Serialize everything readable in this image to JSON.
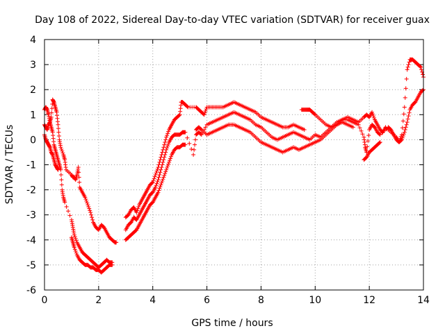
{
  "chart_data": {
    "type": "scatter",
    "title": "Day 108 of 2022, Sidereal Day-to-day VTEC variation (SDTVAR) for receiver guax",
    "xlabel": "GPS time / hours",
    "ylabel": "SDTVAR / TECUs",
    "xlim": [
      0,
      14
    ],
    "ylim": [
      -6,
      4
    ],
    "x_ticks": [
      0,
      2,
      4,
      6,
      8,
      10,
      12,
      14
    ],
    "y_ticks": [
      -6,
      -5,
      -4,
      -3,
      -2,
      -1,
      0,
      1,
      2,
      3,
      4
    ],
    "grid": true,
    "marker": "+",
    "color": "#ff0000",
    "series": [
      {
        "name": "track-a",
        "points": [
          [
            0.0,
            1.2
          ],
          [
            0.05,
            1.3
          ],
          [
            0.1,
            1.2
          ],
          [
            0.15,
            1.0
          ],
          [
            0.2,
            0.7
          ],
          [
            0.25,
            0.9
          ],
          [
            0.3,
            1.6
          ],
          [
            0.35,
            1.5
          ],
          [
            0.4,
            1.3
          ],
          [
            0.45,
            1.1
          ],
          [
            0.5,
            0.6
          ],
          [
            0.55,
            0.0
          ],
          [
            0.6,
            -0.3
          ],
          [
            0.7,
            -0.6
          ],
          [
            0.75,
            -0.8
          ],
          [
            0.8,
            -1.2
          ],
          [
            1.0,
            -1.4
          ],
          [
            1.05,
            -1.5
          ],
          [
            1.1,
            -1.5
          ],
          [
            1.15,
            -1.6
          ],
          [
            1.2,
            -1.4
          ],
          [
            1.25,
            -1.1
          ],
          [
            1.3,
            -1.9
          ],
          [
            1.4,
            -2.1
          ],
          [
            1.5,
            -2.3
          ],
          [
            1.6,
            -2.6
          ],
          [
            1.7,
            -2.9
          ],
          [
            1.8,
            -3.3
          ],
          [
            1.9,
            -3.5
          ],
          [
            2.0,
            -3.6
          ],
          [
            2.1,
            -3.4
          ],
          [
            2.2,
            -3.5
          ],
          [
            2.3,
            -3.7
          ],
          [
            2.4,
            -3.9
          ],
          [
            2.5,
            -4.0
          ],
          [
            2.6,
            -4.1
          ],
          [
            2.65,
            -4.1
          ],
          [
            3.0,
            -3.1
          ],
          [
            3.1,
            -3.0
          ],
          [
            3.2,
            -2.8
          ],
          [
            3.3,
            -2.7
          ],
          [
            3.4,
            -2.9
          ],
          [
            3.5,
            -2.6
          ],
          [
            3.6,
            -2.4
          ],
          [
            3.7,
            -2.2
          ],
          [
            3.8,
            -2.0
          ],
          [
            3.9,
            -1.8
          ],
          [
            4.0,
            -1.7
          ],
          [
            4.1,
            -1.4
          ],
          [
            4.2,
            -1.1
          ],
          [
            4.3,
            -0.7
          ],
          [
            4.4,
            -0.3
          ],
          [
            4.5,
            0.1
          ],
          [
            4.6,
            0.4
          ],
          [
            4.7,
            0.6
          ],
          [
            4.8,
            0.8
          ],
          [
            4.9,
            0.9
          ],
          [
            5.0,
            1.0
          ],
          [
            5.05,
            1.5
          ],
          [
            5.1,
            1.5
          ],
          [
            5.2,
            1.4
          ],
          [
            5.3,
            1.3
          ],
          [
            5.6,
            1.3
          ],
          [
            5.7,
            1.2
          ],
          [
            5.8,
            1.1
          ],
          [
            5.9,
            1.0
          ],
          [
            6.0,
            1.3
          ],
          [
            6.2,
            1.3
          ],
          [
            6.4,
            1.3
          ],
          [
            6.6,
            1.3
          ],
          [
            6.8,
            1.4
          ],
          [
            7.0,
            1.5
          ],
          [
            7.2,
            1.4
          ],
          [
            7.4,
            1.3
          ],
          [
            7.6,
            1.2
          ],
          [
            7.8,
            1.1
          ],
          [
            8.0,
            0.9
          ],
          [
            8.2,
            0.8
          ],
          [
            8.4,
            0.7
          ],
          [
            8.6,
            0.6
          ],
          [
            8.8,
            0.5
          ],
          [
            9.0,
            0.5
          ],
          [
            9.2,
            0.6
          ],
          [
            9.4,
            0.5
          ],
          [
            9.6,
            0.4
          ],
          [
            9.5,
            1.2
          ],
          [
            9.6,
            1.2
          ],
          [
            9.7,
            1.2
          ],
          [
            9.8,
            1.2
          ],
          [
            9.9,
            1.1
          ],
          [
            10.0,
            1.0
          ],
          [
            10.2,
            0.8
          ],
          [
            10.4,
            0.6
          ],
          [
            10.6,
            0.5
          ],
          [
            10.8,
            0.6
          ],
          [
            11.0,
            0.8
          ],
          [
            11.2,
            0.9
          ],
          [
            11.4,
            0.8
          ],
          [
            11.6,
            0.7
          ],
          [
            11.8,
            0.9
          ],
          [
            11.9,
            1.0
          ],
          [
            12.0,
            0.9
          ],
          [
            12.1,
            1.1
          ],
          [
            12.2,
            0.8
          ],
          [
            12.3,
            0.6
          ],
          [
            12.4,
            0.4
          ],
          [
            12.5,
            0.3
          ],
          [
            12.6,
            0.5
          ],
          [
            12.8,
            0.3
          ],
          [
            13.0,
            0.1
          ],
          [
            13.1,
            -0.1
          ],
          [
            13.2,
            0.2
          ],
          [
            13.3,
            1.3
          ],
          [
            13.4,
            2.8
          ],
          [
            13.5,
            3.2
          ],
          [
            13.6,
            3.2
          ],
          [
            13.7,
            3.1
          ],
          [
            13.8,
            3.0
          ],
          [
            13.9,
            2.9
          ],
          [
            14.0,
            2.5
          ]
        ]
      },
      {
        "name": "track-b",
        "points": [
          [
            0.0,
            0.6
          ],
          [
            0.05,
            0.5
          ],
          [
            0.1,
            0.4
          ],
          [
            0.15,
            0.6
          ],
          [
            0.2,
            0.7
          ],
          [
            0.25,
            0.5
          ],
          [
            0.3,
            0.3
          ],
          [
            0.35,
            -0.2
          ],
          [
            0.4,
            -0.4
          ],
          [
            0.45,
            -0.6
          ],
          [
            0.5,
            -0.8
          ],
          [
            0.55,
            -1.0
          ],
          [
            0.6,
            -1.2
          ],
          [
            0.65,
            -2.0
          ],
          [
            0.7,
            -2.3
          ],
          [
            0.75,
            -2.5
          ],
          [
            1.0,
            -3.2
          ],
          [
            1.05,
            -3.5
          ],
          [
            1.1,
            -3.8
          ],
          [
            1.2,
            -4.1
          ],
          [
            1.3,
            -4.3
          ],
          [
            1.4,
            -4.5
          ],
          [
            1.5,
            -4.6
          ],
          [
            1.6,
            -4.7
          ],
          [
            1.7,
            -4.8
          ],
          [
            1.8,
            -4.9
          ],
          [
            1.9,
            -5.0
          ],
          [
            2.0,
            -5.1
          ],
          [
            2.1,
            -5.0
          ],
          [
            2.2,
            -4.9
          ],
          [
            2.3,
            -4.8
          ],
          [
            2.4,
            -4.9
          ],
          [
            2.5,
            -4.9
          ],
          [
            3.0,
            -3.6
          ],
          [
            3.1,
            -3.4
          ],
          [
            3.2,
            -3.3
          ],
          [
            3.3,
            -3.1
          ],
          [
            3.4,
            -3.2
          ],
          [
            3.5,
            -3.0
          ],
          [
            3.6,
            -2.8
          ],
          [
            3.7,
            -2.6
          ],
          [
            3.8,
            -2.4
          ],
          [
            3.9,
            -2.2
          ],
          [
            4.0,
            -2.1
          ],
          [
            4.1,
            -1.9
          ],
          [
            4.2,
            -1.6
          ],
          [
            4.3,
            -1.2
          ],
          [
            4.4,
            -0.8
          ],
          [
            4.5,
            -0.4
          ],
          [
            4.6,
            -0.1
          ],
          [
            4.7,
            0.1
          ],
          [
            4.8,
            0.2
          ],
          [
            4.9,
            0.2
          ],
          [
            5.0,
            0.2
          ],
          [
            5.1,
            0.3
          ],
          [
            5.2,
            0.3
          ],
          [
            5.5,
            -0.6
          ],
          [
            5.6,
            0.2
          ],
          [
            5.7,
            0.3
          ],
          [
            5.8,
            0.2
          ],
          [
            6.0,
            0.6
          ],
          [
            6.2,
            0.7
          ],
          [
            6.4,
            0.8
          ],
          [
            6.6,
            0.9
          ],
          [
            6.8,
            1.0
          ],
          [
            7.0,
            1.1
          ],
          [
            7.2,
            1.0
          ],
          [
            7.4,
            0.9
          ],
          [
            7.6,
            0.8
          ],
          [
            7.8,
            0.6
          ],
          [
            8.0,
            0.5
          ],
          [
            8.2,
            0.3
          ],
          [
            8.4,
            0.1
          ],
          [
            8.6,
            0.0
          ],
          [
            8.8,
            0.1
          ],
          [
            9.0,
            0.2
          ],
          [
            9.2,
            0.3
          ],
          [
            9.4,
            0.2
          ],
          [
            9.6,
            0.1
          ],
          [
            9.8,
            0.0
          ],
          [
            10.0,
            0.2
          ],
          [
            10.2,
            0.1
          ],
          [
            10.4,
            0.3
          ],
          [
            10.6,
            0.5
          ],
          [
            10.8,
            0.7
          ],
          [
            11.0,
            0.8
          ],
          [
            11.2,
            0.8
          ],
          [
            11.4,
            0.7
          ],
          [
            11.6,
            0.6
          ],
          [
            11.8,
            0.1
          ],
          [
            11.85,
            -0.3
          ],
          [
            11.9,
            -0.5
          ],
          [
            12.0,
            0.4
          ],
          [
            12.1,
            0.6
          ],
          [
            12.2,
            0.5
          ],
          [
            12.3,
            0.3
          ],
          [
            12.4,
            0.2
          ],
          [
            12.7,
            0.5
          ],
          [
            12.8,
            0.4
          ],
          [
            12.9,
            0.2
          ],
          [
            13.0,
            0.0
          ],
          [
            13.1,
            -0.1
          ],
          [
            13.2,
            0.0
          ],
          [
            13.3,
            0.3
          ],
          [
            13.4,
            0.7
          ],
          [
            13.5,
            1.2
          ],
          [
            13.6,
            1.4
          ],
          [
            13.7,
            1.5
          ],
          [
            13.8,
            1.7
          ],
          [
            13.9,
            1.9
          ],
          [
            14.0,
            2.0
          ]
        ]
      },
      {
        "name": "track-c",
        "points": [
          [
            0.0,
            0.2
          ],
          [
            0.05,
            0.0
          ],
          [
            0.1,
            -0.1
          ],
          [
            0.15,
            -0.2
          ],
          [
            0.2,
            -0.3
          ],
          [
            0.25,
            -0.5
          ],
          [
            0.3,
            -0.6
          ],
          [
            0.35,
            -0.8
          ],
          [
            0.4,
            -1.0
          ],
          [
            0.45,
            -1.1
          ],
          [
            0.5,
            -1.2
          ],
          [
            1.0,
            -3.9
          ],
          [
            1.05,
            -4.1
          ],
          [
            1.1,
            -4.3
          ],
          [
            1.2,
            -4.6
          ],
          [
            1.3,
            -4.8
          ],
          [
            1.4,
            -4.9
          ],
          [
            1.5,
            -5.0
          ],
          [
            1.6,
            -5.0
          ],
          [
            1.7,
            -5.1
          ],
          [
            1.8,
            -5.1
          ],
          [
            1.9,
            -5.2
          ],
          [
            2.0,
            -5.2
          ],
          [
            2.1,
            -5.3
          ],
          [
            2.2,
            -5.2
          ],
          [
            2.3,
            -5.1
          ],
          [
            2.4,
            -5.0
          ],
          [
            2.5,
            -5.0
          ],
          [
            3.0,
            -4.0
          ],
          [
            3.1,
            -3.9
          ],
          [
            3.2,
            -3.8
          ],
          [
            3.3,
            -3.7
          ],
          [
            3.4,
            -3.6
          ],
          [
            3.5,
            -3.4
          ],
          [
            3.6,
            -3.2
          ],
          [
            3.7,
            -3.0
          ],
          [
            3.8,
            -2.8
          ],
          [
            3.9,
            -2.6
          ],
          [
            4.0,
            -2.5
          ],
          [
            4.1,
            -2.3
          ],
          [
            4.2,
            -2.1
          ],
          [
            4.3,
            -1.8
          ],
          [
            4.4,
            -1.5
          ],
          [
            4.5,
            -1.2
          ],
          [
            4.6,
            -0.9
          ],
          [
            4.7,
            -0.6
          ],
          [
            4.8,
            -0.4
          ],
          [
            4.9,
            -0.3
          ],
          [
            5.0,
            -0.3
          ],
          [
            5.1,
            -0.2
          ],
          [
            5.2,
            -0.2
          ],
          [
            5.6,
            0.4
          ],
          [
            5.7,
            0.5
          ],
          [
            5.8,
            0.4
          ],
          [
            6.0,
            0.2
          ],
          [
            6.2,
            0.3
          ],
          [
            6.4,
            0.4
          ],
          [
            6.6,
            0.5
          ],
          [
            6.8,
            0.6
          ],
          [
            7.0,
            0.6
          ],
          [
            7.2,
            0.5
          ],
          [
            7.4,
            0.4
          ],
          [
            7.6,
            0.3
          ],
          [
            7.8,
            0.1
          ],
          [
            8.0,
            -0.1
          ],
          [
            8.2,
            -0.2
          ],
          [
            8.4,
            -0.3
          ],
          [
            8.6,
            -0.4
          ],
          [
            8.8,
            -0.5
          ],
          [
            9.0,
            -0.4
          ],
          [
            9.2,
            -0.3
          ],
          [
            9.4,
            -0.4
          ],
          [
            9.6,
            -0.3
          ],
          [
            9.8,
            -0.2
          ],
          [
            10.0,
            -0.1
          ],
          [
            10.2,
            0.0
          ],
          [
            10.4,
            0.2
          ],
          [
            10.6,
            0.4
          ],
          [
            10.8,
            0.6
          ],
          [
            11.0,
            0.7
          ],
          [
            11.2,
            0.6
          ],
          [
            11.4,
            0.5
          ],
          [
            11.8,
            -0.8
          ],
          [
            11.9,
            -0.7
          ],
          [
            12.0,
            -0.5
          ],
          [
            12.1,
            -0.4
          ],
          [
            12.2,
            -0.3
          ],
          [
            12.3,
            -0.2
          ],
          [
            12.4,
            -0.1
          ]
        ]
      }
    ]
  }
}
